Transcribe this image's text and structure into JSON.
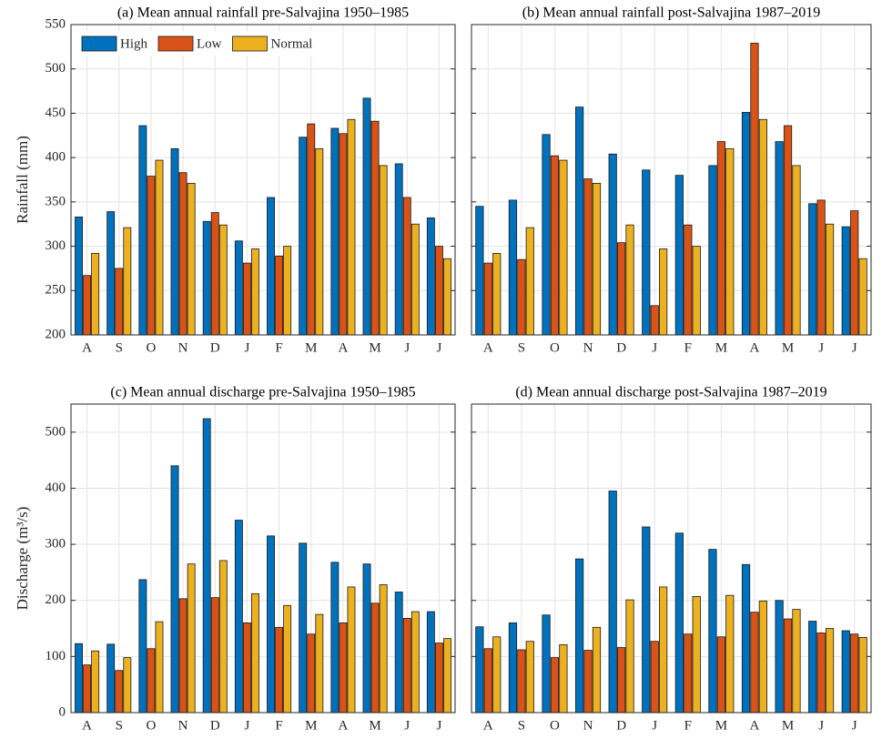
{
  "chart_data": [
    {
      "type": "bar",
      "title": "(a) Mean annual rainfall pre-Salvajina 1950–1985",
      "ylabel": "Rainfall (mm)",
      "categories": [
        "A",
        "S",
        "O",
        "N",
        "D",
        "J",
        "F",
        "M",
        "A",
        "M",
        "J",
        "J"
      ],
      "series": [
        {
          "name": "High",
          "color": "#0072BD",
          "values": [
            333,
            339,
            436,
            410,
            328,
            306,
            355,
            423,
            433,
            467,
            393,
            332
          ]
        },
        {
          "name": "Low",
          "color": "#D95319",
          "values": [
            267,
            275,
            379,
            383,
            338,
            281,
            289,
            438,
            427,
            441,
            355,
            300
          ]
        },
        {
          "name": "Normal",
          "color": "#EDB120",
          "values": [
            292,
            321,
            397,
            371,
            324,
            297,
            300,
            410,
            443,
            391,
            325,
            286
          ]
        }
      ],
      "ylim": [
        200,
        550
      ],
      "yticks": [
        200,
        250,
        300,
        350,
        400,
        450,
        500,
        550
      ],
      "grid": true,
      "legend": "upper left"
    },
    {
      "type": "bar",
      "title": "(b) Mean annual rainfall post-Salvajina 1987–2019",
      "categories": [
        "A",
        "S",
        "O",
        "N",
        "D",
        "J",
        "F",
        "M",
        "A",
        "M",
        "J",
        "J"
      ],
      "series": [
        {
          "color": "#0072BD",
          "values": [
            345,
            352,
            426,
            457,
            404,
            386,
            380,
            391,
            451,
            418,
            348,
            322
          ]
        },
        {
          "color": "#D95319",
          "values": [
            281,
            285,
            402,
            376,
            304,
            233,
            324,
            418,
            529,
            436,
            352,
            340
          ]
        },
        {
          "color": "#EDB120",
          "values": [
            292,
            321,
            397,
            371,
            324,
            297,
            300,
            410,
            443,
            391,
            325,
            286
          ]
        }
      ],
      "ylim": [
        200,
        550
      ],
      "yticks": [
        200,
        250,
        300,
        350,
        400,
        450,
        500,
        550
      ],
      "grid": true,
      "ytick_labels": false
    },
    {
      "type": "bar",
      "title": "(c) Mean annual discharge pre-Salvajina 1950–1985",
      "ylabel": "Discharge (m³/s)",
      "categories": [
        "A",
        "S",
        "O",
        "N",
        "D",
        "J",
        "F",
        "M",
        "A",
        "M",
        "J",
        "J"
      ],
      "series": [
        {
          "color": "#0072BD",
          "values": [
            123,
            122,
            237,
            440,
            524,
            343,
            315,
            302,
            268,
            265,
            215,
            180
          ]
        },
        {
          "color": "#D95319",
          "values": [
            85,
            75,
            114,
            203,
            205,
            160,
            152,
            140,
            160,
            195,
            168,
            124
          ]
        },
        {
          "color": "#EDB120",
          "values": [
            110,
            98,
            162,
            265,
            271,
            212,
            191,
            175,
            224,
            228,
            180,
            132
          ]
        }
      ],
      "ylim": [
        0,
        550
      ],
      "yticks": [
        0,
        100,
        200,
        300,
        400,
        500
      ],
      "grid": true
    },
    {
      "type": "bar",
      "title": "(d) Mean annual discharge post-Salvajina 1987–2019",
      "categories": [
        "A",
        "S",
        "O",
        "N",
        "D",
        "J",
        "F",
        "M",
        "A",
        "M",
        "J",
        "J"
      ],
      "series": [
        {
          "color": "#0072BD",
          "values": [
            153,
            160,
            174,
            274,
            395,
            331,
            320,
            291,
            264,
            200,
            163,
            146
          ]
        },
        {
          "color": "#D95319",
          "values": [
            114,
            112,
            98,
            111,
            116,
            127,
            140,
            135,
            179,
            167,
            142,
            140
          ]
        },
        {
          "color": "#EDB120",
          "values": [
            135,
            127,
            121,
            152,
            201,
            224,
            207,
            209,
            199,
            184,
            150,
            134
          ]
        }
      ],
      "ylim": [
        0,
        550
      ],
      "yticks": [
        0,
        100,
        200,
        300,
        400,
        500
      ],
      "grid": true,
      "ytick_labels": false
    }
  ]
}
